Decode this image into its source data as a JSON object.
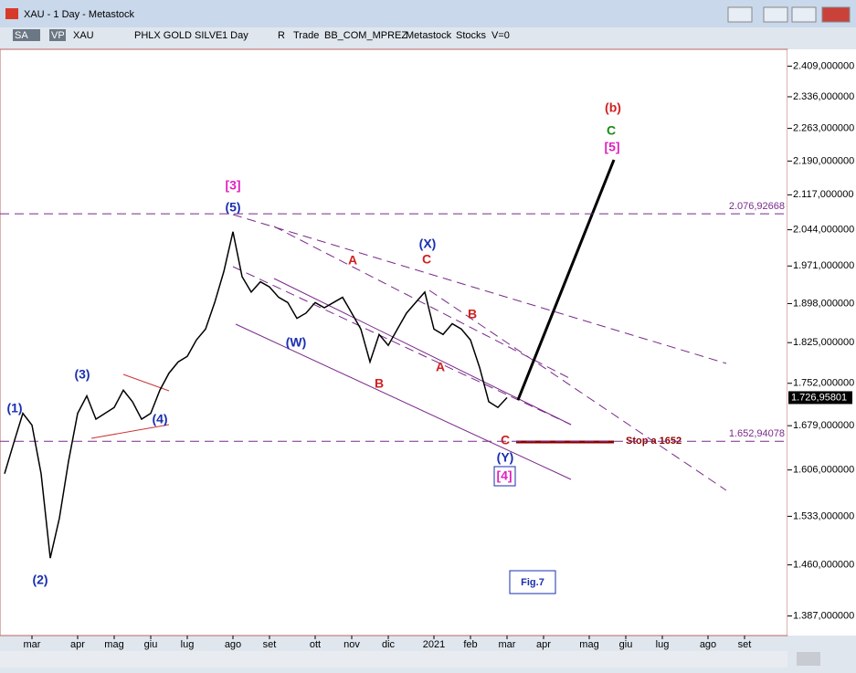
{
  "window": {
    "title": "XAU - 1 Day - Metastock"
  },
  "toolbar": [
    "SA",
    "VP",
    "XAU",
    "PHLX GOLD SILVE",
    "1 Day",
    "R",
    "Trade",
    "BB_COM_MPREZ",
    "Metastock",
    "Stocks",
    "V=0"
  ],
  "annotations": [
    "(1)",
    "(2)",
    "(3)",
    "(4)",
    "(5)",
    "[3]",
    "(W)",
    "A",
    "B",
    "(X)",
    "C",
    "A",
    "B",
    "C",
    "(Y)",
    "[4]",
    "(b)",
    "C",
    "[5]",
    "Stop a 1652",
    "Fig.7"
  ],
  "chart_data": {
    "type": "line",
    "log_scale": true,
    "color": "#000000",
    "categories": [
      null,
      null,
      null,
      "mar",
      null,
      null,
      null,
      null,
      "apr",
      null,
      null,
      null,
      "mag",
      null,
      null,
      null,
      "giu",
      null,
      null,
      null,
      "lug",
      null,
      null,
      null,
      null,
      "ago",
      null,
      null,
      null,
      "set",
      null,
      null,
      null,
      null,
      "ott",
      null,
      null,
      null,
      "nov",
      null,
      null,
      null,
      "dic",
      null,
      null,
      null,
      null,
      "2021",
      null,
      null,
      null,
      "feb",
      null,
      null,
      null,
      "mar",
      null,
      null,
      null,
      "apr",
      null,
      null,
      null,
      null,
      "mag",
      null,
      null,
      null,
      "giu",
      null,
      null,
      null,
      "lug",
      null,
      null,
      null,
      null,
      "ago",
      null,
      null,
      null,
      "set",
      null,
      null,
      null,
      null
    ],
    "series": [
      {
        "name": "XAU",
        "color": "#000000",
        "values": [
          1600,
          1650,
          1700,
          1680,
          1600,
          1470,
          1530,
          1620,
          1700,
          1730,
          1690,
          1700,
          1710,
          1740,
          1720,
          1690,
          1700,
          1740,
          1770,
          1790,
          1800,
          1830,
          1850,
          1900,
          1960,
          2040,
          1950,
          1920,
          1940,
          1930,
          1910,
          1900,
          1870,
          1880,
          1900,
          1890,
          1900,
          1910,
          1880,
          1850,
          1790,
          1840,
          1820,
          1850,
          1880,
          1900,
          1920,
          1850,
          1840,
          1860,
          1850,
          1830,
          1780,
          1720,
          1710,
          1727,
          null,
          null,
          null,
          null,
          null,
          null,
          null,
          null,
          null,
          null,
          null,
          null,
          null,
          null,
          null,
          null,
          null,
          null,
          null,
          null,
          null,
          null,
          null,
          null,
          null,
          null,
          null,
          null,
          null,
          null
        ]
      }
    ],
    "ylim": [
      1360,
      2450
    ],
    "yticks": [
      {
        "value": 1387,
        "label": "1.387,000000"
      },
      {
        "value": 1460,
        "label": "1.460,000000"
      },
      {
        "value": 1533,
        "label": "1.533,000000"
      },
      {
        "value": 1606,
        "label": "1.606,000000"
      },
      {
        "value": 1679,
        "label": "1.679,000000"
      },
      {
        "value": 1752,
        "label": "1.752,000000"
      },
      {
        "value": 1825,
        "label": "1.825,000000"
      },
      {
        "value": 1898,
        "label": "1.898,000000"
      },
      {
        "value": 1971,
        "label": "1.971,000000"
      },
      {
        "value": 2044,
        "label": "2.044,000000"
      },
      {
        "value": 2117,
        "label": "2.117,000000"
      },
      {
        "value": 2190,
        "label": "2.190,000000"
      },
      {
        "value": 2263,
        "label": "2.263,000000"
      },
      {
        "value": 2336,
        "label": "2.336,000000"
      },
      {
        "value": 2409,
        "label": "2.409,000000"
      }
    ],
    "hlines": [
      {
        "value": 2076.92668,
        "label": "2.076,92668"
      },
      {
        "value": 1652.94078,
        "label": "1.652,94078"
      }
    ],
    "last_price": {
      "value": 1726.95801,
      "label": "1.726,95801"
    }
  }
}
